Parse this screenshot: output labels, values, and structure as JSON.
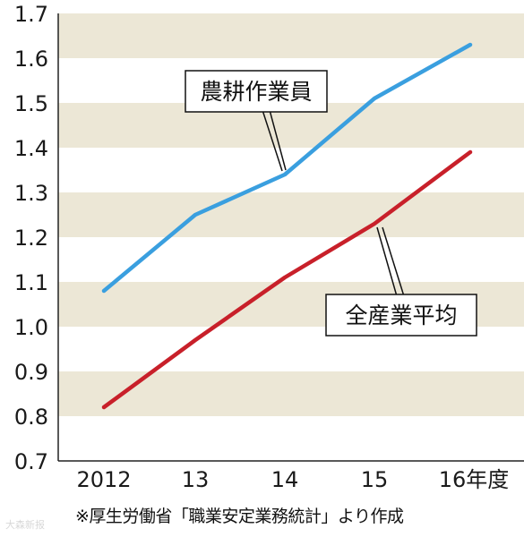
{
  "chart_data": {
    "type": "line",
    "categories": [
      "2012",
      "13",
      "14",
      "15",
      "16年度"
    ],
    "series": [
      {
        "name": "農耕作業員",
        "values": [
          1.08,
          1.25,
          1.34,
          1.51,
          1.63
        ],
        "color": "#3a9fdf"
      },
      {
        "name": "全産業平均",
        "values": [
          0.82,
          0.97,
          1.11,
          1.23,
          1.39
        ],
        "color": "#c8202a"
      }
    ],
    "ylim": [
      0.7,
      1.7
    ],
    "yticks": [
      "0.7",
      "0.8",
      "0.9",
      "1.0",
      "1.1",
      "1.2",
      "1.3",
      "1.4",
      "1.5",
      "1.6",
      "1.7"
    ],
    "grid": "alternating horizontal bands",
    "band_color": "#ece7d6",
    "legend": "callout labels on lines",
    "source": "※厚生労働省「職業安定業務統計」より作成"
  },
  "watermark": "大森新报"
}
